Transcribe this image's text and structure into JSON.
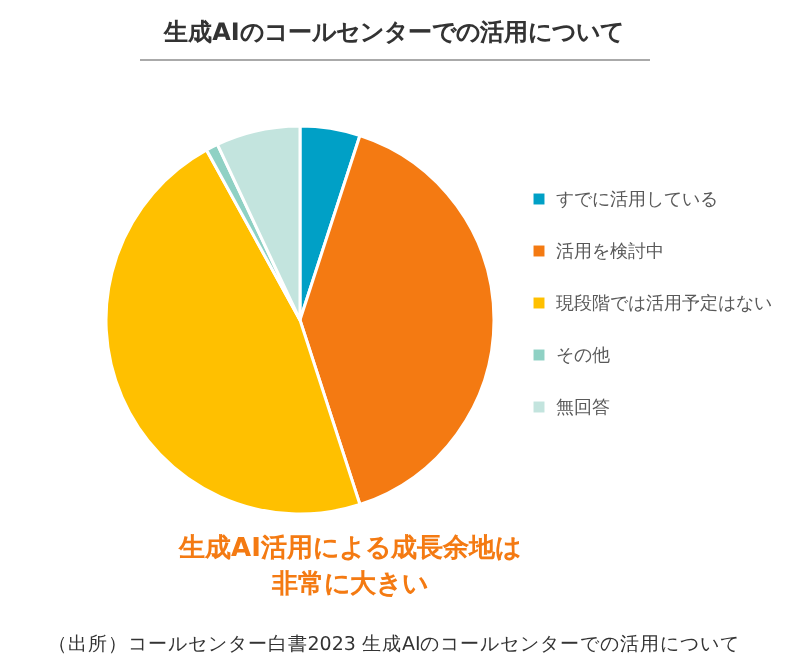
{
  "chart_data": {
    "type": "pie",
    "title": "生成AIのコールセンターでの活用について",
    "categories": [
      "すでに活用している",
      "活用を検討中",
      "現段階では活用予定はない",
      "その他",
      "無回答"
    ],
    "values": [
      5,
      40,
      47,
      1,
      7
    ],
    "colors": [
      "#00a0c6",
      "#f47a12",
      "#ffc000",
      "#8fd1c4",
      "#c3e4de"
    ],
    "legend": "right",
    "annotations": [
      "生成AI活用による成長余地は",
      "非常に大きい",
      "（出所）コールセンター白書2023 生成AIのコールセンターでの活用について"
    ]
  }
}
